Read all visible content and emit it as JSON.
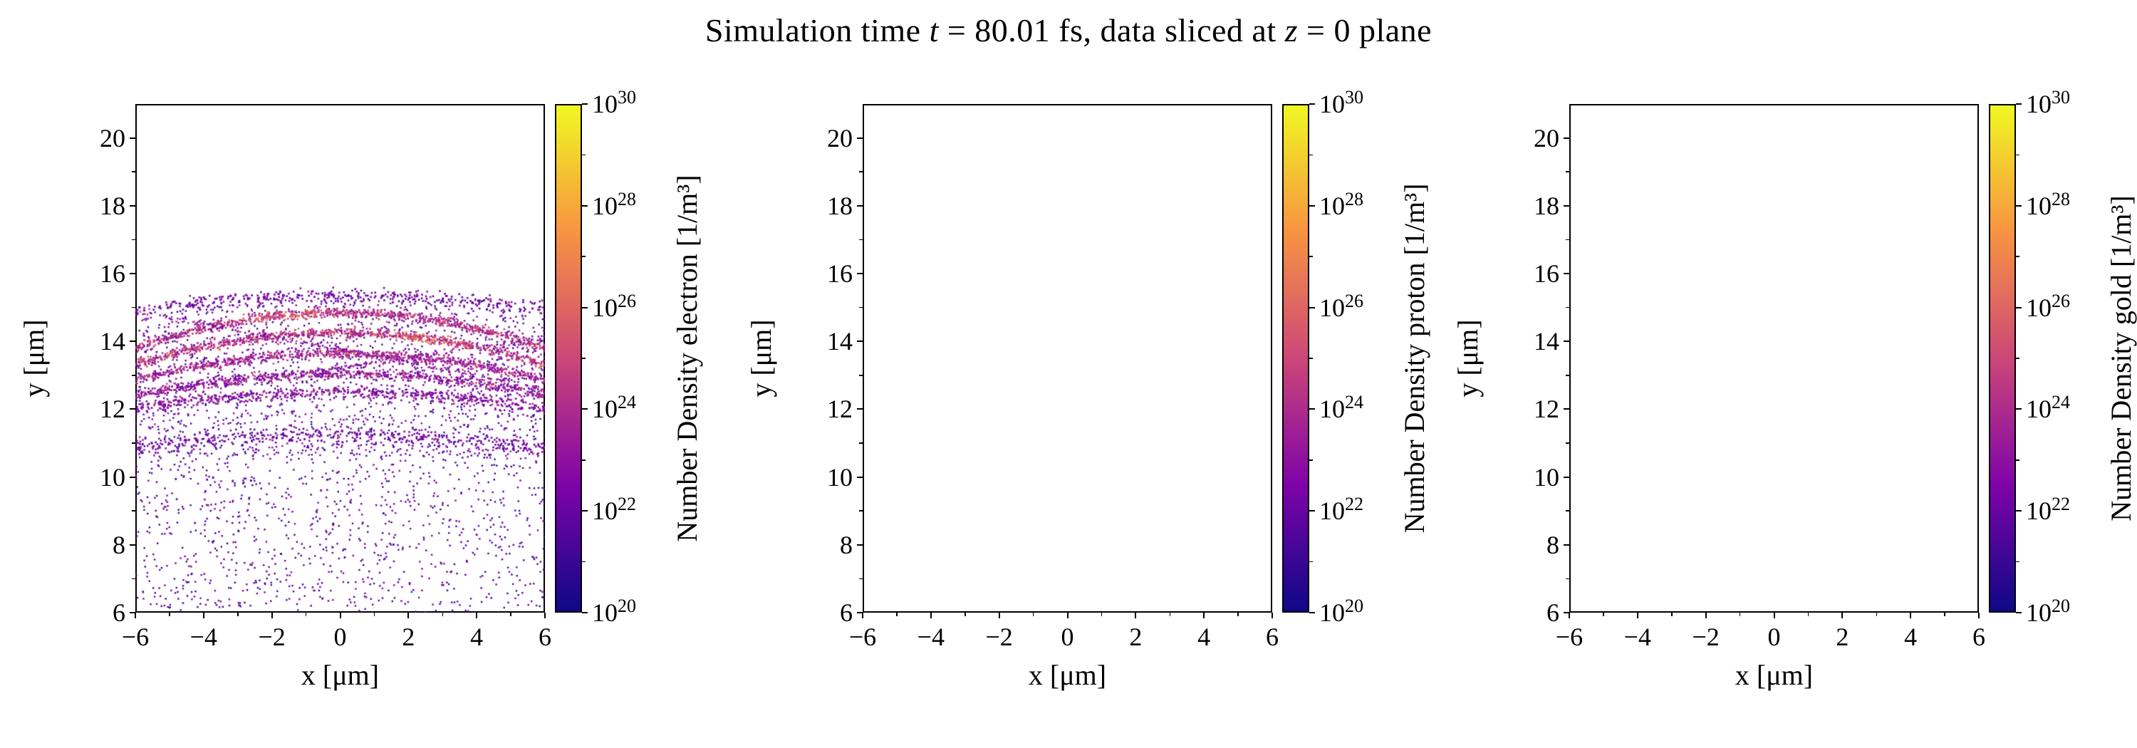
{
  "figure": {
    "title_plain": "Simulation time t = 80.01 fs, data sliced at z = 0 plane",
    "title_segments": [
      {
        "text": "Simulation time ",
        "italic": false
      },
      {
        "text": "t",
        "italic": true
      },
      {
        "text": " = 80.01 fs, data sliced at ",
        "italic": false
      },
      {
        "text": "z",
        "italic": true
      },
      {
        "text": " = 0 plane",
        "italic": false
      }
    ],
    "background_color": "#ffffff",
    "frame_color": "#000000"
  },
  "colormap": {
    "name": "plasma",
    "stops": [
      "#0d0887",
      "#7e03a8",
      "#cc4778",
      "#f89441",
      "#f0f921"
    ]
  },
  "chart_data": [
    {
      "type": "scatter",
      "species": "electron",
      "xlabel": "x [μm]",
      "ylabel": "y [μm]",
      "xlim": [
        -6,
        6
      ],
      "ylim": [
        6,
        21
      ],
      "xtick_values": [
        -6,
        -4,
        -2,
        0,
        2,
        4,
        6
      ],
      "xtick_labels": [
        "−6",
        "−4",
        "−2",
        "0",
        "2",
        "4",
        "6"
      ],
      "xtick_minor": [
        -5,
        -3,
        -1,
        1,
        3,
        5
      ],
      "ytick_values": [
        6,
        8,
        10,
        12,
        14,
        16,
        18,
        20
      ],
      "ytick_labels": [
        "6",
        "8",
        "10",
        "12",
        "14",
        "16",
        "18",
        "20"
      ],
      "ytick_minor": [
        7,
        9,
        11,
        13,
        15,
        17,
        19
      ],
      "grid": false,
      "colorbar": {
        "label": "Number Density electron [1/m³]",
        "scale": "log",
        "exp_min": 20,
        "exp_max": 30,
        "tick_exponents": [
          20,
          22,
          24,
          26,
          28,
          30
        ],
        "minor_exponents": [
          21,
          23,
          25,
          27,
          29
        ]
      },
      "scatter_model": {
        "comment": "procedural reconstruction of the electron density scatter: diffuse halo below y≈15.5 plus dense downward-curving arc bands between y≈11 and y≈15.4; color = log10 number density (exponent range mapped on plasma colormap 10^20..10^30)",
        "seed": 42,
        "diffuse": [
          {
            "n": 1000,
            "x": [
              -6,
              6
            ],
            "y": [
              6,
              10.8
            ],
            "exp": [
              20.8,
              22.8
            ]
          },
          {
            "n": 1700,
            "x": [
              -6,
              6
            ],
            "y": [
              10.6,
              15.3
            ],
            "arch": 0.018,
            "exp": [
              21,
              23.2
            ]
          }
        ],
        "bands": [
          {
            "y0": 15.35,
            "curv": 0.012,
            "sigma": 0.1,
            "n": 420,
            "exp": [
              21.5,
              23.5
            ]
          },
          {
            "y0": 14.85,
            "curv": 0.03,
            "sigma": 0.07,
            "n": 850,
            "exp": [
              23,
              26
            ],
            "hot": [
              -3.5,
              0.5
            ],
            "hot_boost": 1.6
          },
          {
            "y0": 14.25,
            "curv": 0.026,
            "sigma": 0.07,
            "n": 850,
            "exp": [
              23,
              26.5
            ],
            "hot": [
              1,
              4.5
            ],
            "hot_boost": 1.6
          },
          {
            "y0": 13.65,
            "curv": 0.022,
            "sigma": 0.07,
            "n": 750,
            "exp": [
              22.5,
              25.5
            ],
            "hot": [
              -1,
              2
            ],
            "hot_boost": 1.0
          },
          {
            "y0": 13.05,
            "curv": 0.018,
            "sigma": 0.07,
            "n": 650,
            "exp": [
              22,
              25
            ]
          },
          {
            "y0": 12.5,
            "curv": 0.014,
            "sigma": 0.08,
            "n": 550,
            "exp": [
              22,
              24.5
            ]
          },
          {
            "y0": 11.25,
            "curv": 0.012,
            "sigma": 0.14,
            "n": 430,
            "exp": [
              21.5,
              23.5
            ]
          }
        ],
        "streaks": [
          {
            "from": [
              -6,
              14.9
            ],
            "to": [
              6,
              12.6
            ],
            "n": 220,
            "sigma": 0.05,
            "exp": [
              22,
              24.2
            ]
          },
          {
            "from": [
              -5.5,
              12.4
            ],
            "to": [
              6,
              14.1
            ],
            "n": 180,
            "sigma": 0.05,
            "exp": [
              22,
              24
            ]
          }
        ]
      }
    },
    {
      "type": "scatter",
      "species": "proton",
      "xlabel": "x [μm]",
      "ylabel": "y [μm]",
      "xlim": [
        -6,
        6
      ],
      "ylim": [
        6,
        21
      ],
      "xtick_values": [
        -6,
        -4,
        -2,
        0,
        2,
        4,
        6
      ],
      "xtick_labels": [
        "−6",
        "−4",
        "−2",
        "0",
        "2",
        "4",
        "6"
      ],
      "xtick_minor": [
        -5,
        -3,
        -1,
        1,
        3,
        5
      ],
      "ytick_values": [
        6,
        8,
        10,
        12,
        14,
        16,
        18,
        20
      ],
      "ytick_labels": [
        "6",
        "8",
        "10",
        "12",
        "14",
        "16",
        "18",
        "20"
      ],
      "ytick_minor": [
        7,
        9,
        11,
        13,
        15,
        17,
        19
      ],
      "grid": false,
      "colorbar": {
        "label": "Number Density proton [1/m³]",
        "scale": "log",
        "exp_min": 20,
        "exp_max": 30,
        "tick_exponents": [
          20,
          22,
          24,
          26,
          28,
          30
        ],
        "minor_exponents": [
          21,
          23,
          25,
          27,
          29
        ]
      },
      "scatter_model": null
    },
    {
      "type": "scatter",
      "species": "gold",
      "xlabel": "x [μm]",
      "ylabel": "y [μm]",
      "xlim": [
        -6,
        6
      ],
      "ylim": [
        6,
        21
      ],
      "xtick_values": [
        -6,
        -4,
        -2,
        0,
        2,
        4,
        6
      ],
      "xtick_labels": [
        "−6",
        "−4",
        "−2",
        "0",
        "2",
        "4",
        "6"
      ],
      "xtick_minor": [
        -5,
        -3,
        -1,
        1,
        3,
        5
      ],
      "ytick_values": [
        6,
        8,
        10,
        12,
        14,
        16,
        18,
        20
      ],
      "ytick_labels": [
        "6",
        "8",
        "10",
        "12",
        "14",
        "16",
        "18",
        "20"
      ],
      "ytick_minor": [
        7,
        9,
        11,
        13,
        15,
        17,
        19
      ],
      "grid": false,
      "colorbar": {
        "label": "Number Density gold [1/m³]",
        "scale": "log",
        "exp_min": 20,
        "exp_max": 30,
        "tick_exponents": [
          20,
          22,
          24,
          26,
          28,
          30
        ],
        "minor_exponents": [
          21,
          23,
          25,
          27,
          29
        ]
      },
      "scatter_model": null
    }
  ]
}
